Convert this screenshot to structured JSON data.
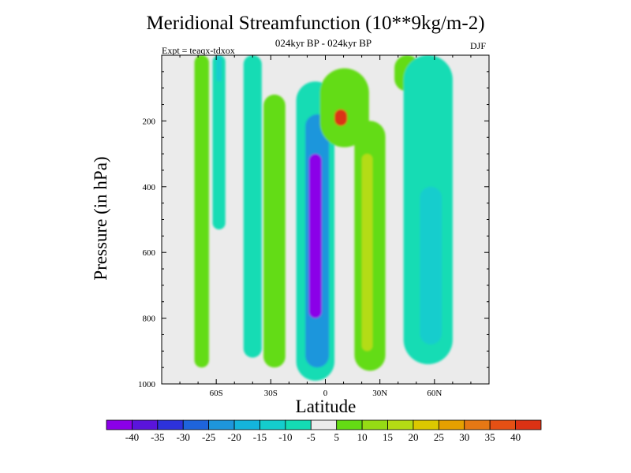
{
  "chart_data": {
    "type": "heatmap",
    "title": "Meridional Streamfunction (10**9kg/m-2)",
    "subtitle": "024kyr BP - 024kyr BP",
    "experiment": "Expt = teaqx-tdxox",
    "season": "DJF",
    "xlabel": "Latitude",
    "ylabel": "Pressure (in hPa)",
    "xlim": [
      -90,
      90
    ],
    "ylim": [
      1000,
      0
    ],
    "x_ticks": [
      {
        "value": -60,
        "label": "60S"
      },
      {
        "value": -30,
        "label": "30S"
      },
      {
        "value": 0,
        "label": "0"
      },
      {
        "value": 30,
        "label": "30N"
      },
      {
        "value": 60,
        "label": "60N"
      }
    ],
    "y_ticks": [
      {
        "value": 200,
        "label": "200"
      },
      {
        "value": 400,
        "label": "400"
      },
      {
        "value": 600,
        "label": "600"
      },
      {
        "value": 800,
        "label": "800"
      },
      {
        "value": 1000,
        "label": "1000"
      }
    ],
    "colorbar": {
      "labels": [
        "-40",
        "-35",
        "-30",
        "-25",
        "-20",
        "-15",
        "-10",
        "-5",
        "5",
        "10",
        "15",
        "20",
        "25",
        "30",
        "35",
        "40"
      ],
      "colors": [
        "#8b00e8",
        "#5a14dc",
        "#2d32dc",
        "#1e64dc",
        "#1e96dc",
        "#14b4dc",
        "#14cdcd",
        "#14dcb4",
        "#ebebeb",
        "#64dc14",
        "#96dc14",
        "#b4dc14",
        "#dcc800",
        "#e6a000",
        "#e67814",
        "#e65014",
        "#dc3214"
      ]
    },
    "features": [
      {
        "level": 5,
        "lat": [
          -72,
          -64
        ],
        "p": [
          0,
          950
        ],
        "label": "green band 60S"
      },
      {
        "level": -5,
        "lat": [
          -62,
          -55
        ],
        "p": [
          0,
          530
        ],
        "label": "cyan band 60S"
      },
      {
        "level": -10,
        "lat": [
          -60,
          -57
        ],
        "p": [
          0,
          80
        ],
        "label": "cyan core 60S"
      },
      {
        "level": -5,
        "lat": [
          -45,
          -35
        ],
        "p": [
          0,
          920
        ],
        "label": "cyan band 40S"
      },
      {
        "level": 5,
        "lat": [
          -34,
          -22
        ],
        "p": [
          120,
          950
        ],
        "label": "green band 30S"
      },
      {
        "level": -5,
        "lat": [
          -16,
          5
        ],
        "p": [
          80,
          990
        ],
        "label": "tropical negative cell"
      },
      {
        "level": -20,
        "lat": [
          -11,
          2
        ],
        "p": [
          180,
          950
        ],
        "label": "inner negative cell"
      },
      {
        "level": -40,
        "lat": [
          -9,
          -2
        ],
        "p": [
          300,
          800
        ],
        "label": "negative cell core"
      },
      {
        "level": 5,
        "lat": [
          -3,
          24
        ],
        "p": [
          40,
          280
        ],
        "label": "upper positive cell"
      },
      {
        "level": 40,
        "lat": [
          5,
          12
        ],
        "p": [
          165,
          215
        ],
        "label": "positive cell max"
      },
      {
        "level": 5,
        "lat": [
          16,
          33
        ],
        "p": [
          200,
          960
        ],
        "label": "green band 25N"
      },
      {
        "level": 15,
        "lat": [
          20,
          26
        ],
        "p": [
          300,
          900
        ],
        "label": "positive core 25N"
      },
      {
        "level": 5,
        "lat": [
          38,
          52
        ],
        "p": [
          0,
          110
        ],
        "label": "green band 45N"
      },
      {
        "level": -5,
        "lat": [
          43,
          70
        ],
        "p": [
          0,
          940
        ],
        "label": "cyan band 55N"
      },
      {
        "level": -10,
        "lat": [
          52,
          64
        ],
        "p": [
          400,
          880
        ],
        "label": "cyan core 55N"
      }
    ]
  }
}
